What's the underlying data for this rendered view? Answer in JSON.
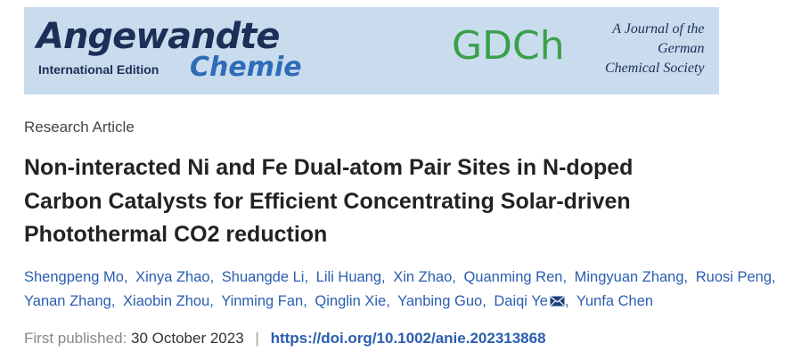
{
  "banner": {
    "journal_name": "Angewandte",
    "edition": "International Edition",
    "journal_subname": "Chemie",
    "society_logo": "GDCh",
    "society_lines": [
      "A Journal of the",
      "German",
      "Chemical Society"
    ]
  },
  "article": {
    "type": "Research Article",
    "title_lines": [
      "Non-interacted Ni and Fe Dual-atom Pair Sites in N-doped",
      "Carbon Catalysts for Efficient Concentrating Solar-driven",
      "Photothermal CO2 reduction"
    ],
    "authors": [
      "Shengpeng Mo",
      "Xinya Zhao",
      "Shuangde Li",
      "Lili Huang",
      "Xin Zhao",
      "Quanming Ren",
      "Mingyuan Zhang",
      "Ruosi Peng",
      "Yanan Zhang",
      "Xiaobin Zhou",
      "Yinming Fan",
      "Qinglin Xie",
      "Yanbing Guo",
      "Daiqi Ye",
      "Yunfa Chen"
    ],
    "author_separator": ",",
    "published_label": "First published:",
    "published_date": "30 October 2023",
    "divider": "|",
    "doi": "https://doi.org/10.1002/anie.202313868"
  }
}
